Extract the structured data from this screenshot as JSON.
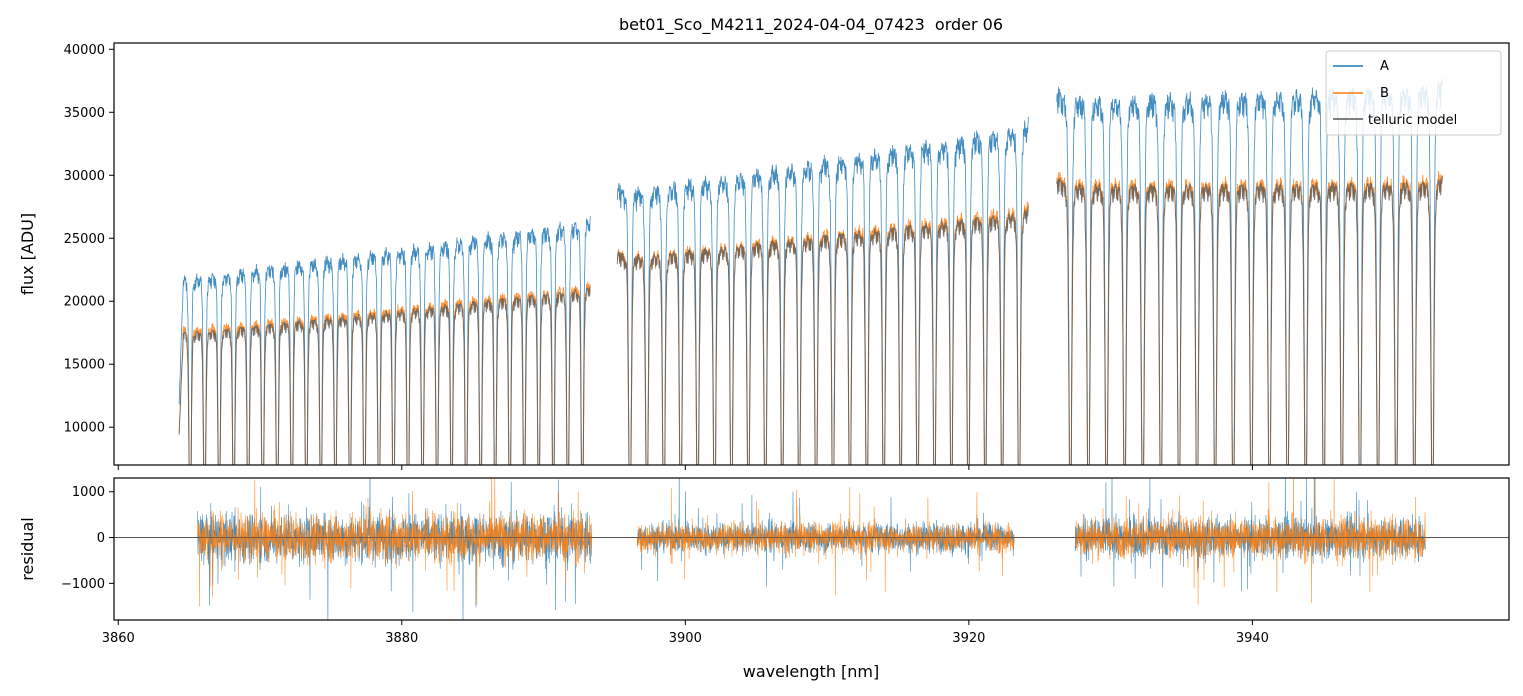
{
  "chart_data": [
    {
      "type": "line",
      "title": "bet01_Sco_M4211_2024-04-04_07423  order 06",
      "xlabel": "",
      "ylabel": "flux [ADU]",
      "xlim": [
        3859.7,
        3958.1
      ],
      "ylim": [
        7000,
        40500
      ],
      "yticks": [
        10000,
        15000,
        20000,
        25000,
        30000,
        35000,
        40000
      ],
      "ytick_labels": [
        "10000",
        "15000",
        "20000",
        "25000",
        "30000",
        "35000",
        "40000"
      ],
      "xticks": [
        3860,
        3880,
        3900,
        3920,
        3940
      ],
      "legend_position": "top-right",
      "segments": [
        {
          "x_start": 3864.3,
          "x_end": 3893.3,
          "line_count": 28,
          "a_continuum": [
            22500,
            27200
          ],
          "b_continuum": [
            18300,
            22000
          ],
          "model_continuum": [
            18000,
            21700
          ],
          "a_depth": 0.7,
          "b_depth": 0.7
        },
        {
          "x_start": 3895.2,
          "x_end": 3924.2,
          "line_count": 24,
          "a_continuum": [
            29500,
            35000
          ],
          "b_continuum": [
            24300,
            28400
          ],
          "model_continuum": [
            24200,
            28000
          ],
          "a_depth": 0.75,
          "b_depth": 0.75
        },
        {
          "x_start": 3926.2,
          "x_end": 3953.4,
          "line_count": 21,
          "a_continuum": [
            37200,
            38300
          ],
          "b_continuum": [
            30500,
            30700
          ],
          "model_continuum": [
            30200,
            30400
          ],
          "a_depth": 0.4,
          "b_depth": 0.4
        }
      ],
      "series": [
        {
          "name": "A",
          "color": "#1f77b4"
        },
        {
          "name": "B",
          "color": "#ff7f0e"
        },
        {
          "name": "telluric model",
          "color": "#555555"
        }
      ]
    },
    {
      "type": "line",
      "title": "",
      "xlabel": "wavelength [nm]",
      "ylabel": "residual",
      "xlim": [
        3859.7,
        3958.1
      ],
      "ylim": [
        -1800,
        1300
      ],
      "yticks": [
        -1000,
        0,
        1000
      ],
      "ytick_labels": [
        "−1000",
        "0",
        "1000"
      ],
      "xticks": [
        3860,
        3880,
        3900,
        3920,
        3940
      ],
      "xtick_labels": [
        "3860",
        "3880",
        "3900",
        "3920",
        "3940"
      ],
      "reference_line": 0,
      "segments": [
        {
          "x_start": 3865.6,
          "x_end": 3893.4,
          "noise": 500
        },
        {
          "x_start": 3896.6,
          "x_end": 3923.2,
          "noise": 300
        },
        {
          "x_start": 3927.5,
          "x_end": 3952.2,
          "noise": 400
        }
      ],
      "series": [
        {
          "name": "A",
          "color": "#1f77b4"
        },
        {
          "name": "B",
          "color": "#ff7f0e"
        }
      ]
    }
  ]
}
